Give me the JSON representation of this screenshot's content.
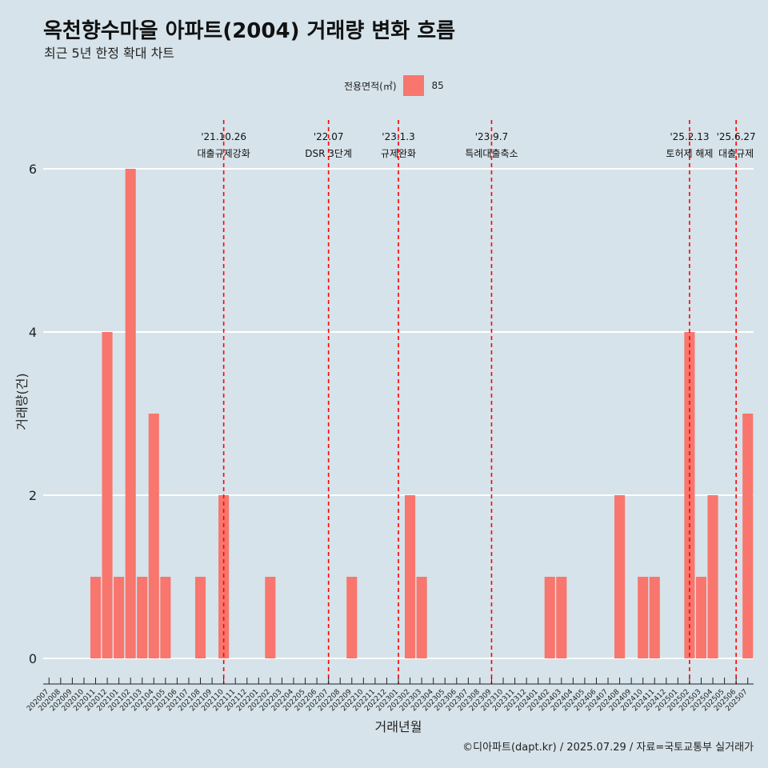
{
  "title": "옥천향수마을 아파트(2004) 거래량 변화 흐름",
  "subtitle": "최근 5년 한정 확대 차트",
  "caption": "©디아파트(dapt.kr) / 2025.07.29 / 자료=국토교통부 실거래가",
  "colors": {
    "background": "#d6e3ea",
    "bar": "#f8766d",
    "event_line": "#ff0000",
    "grid": "#ffffff"
  },
  "chart_data": {
    "type": "bar",
    "xlabel": "거래년월",
    "ylabel": "거래량(건)",
    "ylim": [
      0,
      6
    ],
    "yticks": [
      0,
      2,
      4,
      6
    ],
    "grid": true,
    "legend": {
      "title": "전용면적(㎡)",
      "position": "top"
    },
    "categories": [
      "202007",
      "202008",
      "202009",
      "202010",
      "202011",
      "202012",
      "202101",
      "202102",
      "202103",
      "202104",
      "202105",
      "202106",
      "202107",
      "202108",
      "202109",
      "202110",
      "202111",
      "202112",
      "202201",
      "202202",
      "202203",
      "202204",
      "202205",
      "202206",
      "202207",
      "202208",
      "202209",
      "202210",
      "202211",
      "202212",
      "202301",
      "202302",
      "202303",
      "202304",
      "202305",
      "202306",
      "202307",
      "202308",
      "202309",
      "202310",
      "202311",
      "202312",
      "202401",
      "202402",
      "202403",
      "202404",
      "202405",
      "202406",
      "202407",
      "202408",
      "202409",
      "202410",
      "202411",
      "202412",
      "202501",
      "202502",
      "202503",
      "202504",
      "202505",
      "202506",
      "202507"
    ],
    "series": [
      {
        "name": "85",
        "values": [
          0,
          0,
          0,
          0,
          1,
          4,
          1,
          6,
          1,
          3,
          1,
          0,
          0,
          1,
          0,
          2,
          0,
          0,
          0,
          1,
          0,
          0,
          0,
          0,
          0,
          0,
          1,
          0,
          0,
          0,
          0,
          2,
          1,
          0,
          0,
          0,
          0,
          0,
          0,
          0,
          0,
          0,
          0,
          1,
          1,
          0,
          0,
          0,
          0,
          2,
          0,
          1,
          1,
          0,
          0,
          4,
          1,
          2,
          0,
          0,
          3
        ]
      }
    ],
    "events": [
      {
        "date": "'21.10.26",
        "label": "대출규제강화",
        "x": "202110"
      },
      {
        "date": "'22.07",
        "label": "DSR 3단계",
        "x": "202207"
      },
      {
        "date": "'23.1.3",
        "label": "규제완화",
        "x": "202301"
      },
      {
        "date": "'23.9.7",
        "label": "특례대출축소",
        "x": "202309"
      },
      {
        "date": "'25.2.13",
        "label": "토허제 해제",
        "x": "202502"
      },
      {
        "date": "'25.6.27",
        "label": "대출규제",
        "x": "202506"
      }
    ]
  }
}
